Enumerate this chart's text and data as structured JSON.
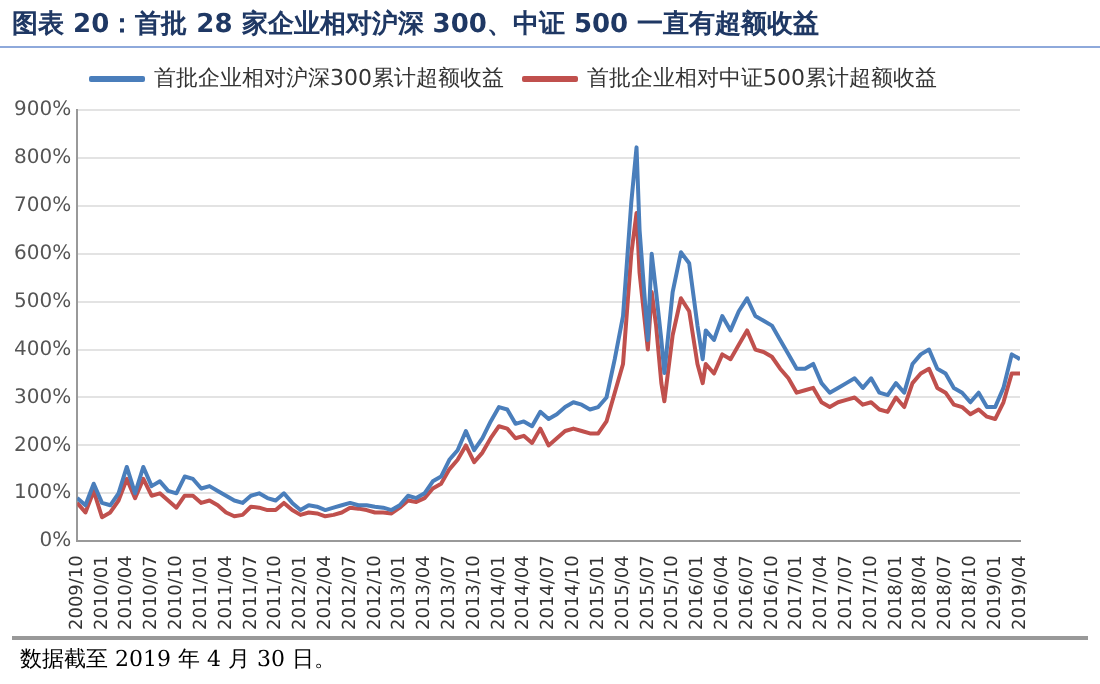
{
  "chart_data": {
    "type": "line",
    "title": "图表 20：首批 28 家企业相对沪深 300、中证 500 一直有超额收益",
    "annotations": [
      "数据截至 2019 年 4 月 30 日。"
    ],
    "x": [
      "2009-10",
      "2009-11",
      "2009-12",
      "2010-01",
      "2010-02",
      "2010-03",
      "2010-04",
      "2010-05",
      "2010-06",
      "2010-07",
      "2010-08",
      "2010-09",
      "2010-10",
      "2010-11",
      "2010-12",
      "2011-01",
      "2011-02",
      "2011-03",
      "2011-04",
      "2011-05",
      "2011-06",
      "2011-07",
      "2011-08",
      "2011-09",
      "2011-10",
      "2011-11",
      "2011-12",
      "2012-01",
      "2012-02",
      "2012-03",
      "2012-04",
      "2012-05",
      "2012-06",
      "2012-07",
      "2012-08",
      "2012-09",
      "2012-10",
      "2012-11",
      "2012-12",
      "2013-01",
      "2013-02",
      "2013-03",
      "2013-04",
      "2013-05",
      "2013-06",
      "2013-07",
      "2013-08",
      "2013-09",
      "2013-10",
      "2013-11",
      "2013-12",
      "2014-01",
      "2014-02",
      "2014-03",
      "2014-04",
      "2014-05",
      "2014-06",
      "2014-07",
      "2014-08",
      "2014-09",
      "2014-10",
      "2014-11",
      "2014-12",
      "2015-01",
      "2015-02",
      "2015-03",
      "2015-04",
      "2015-05",
      "2015-05-20",
      "2015-06",
      "2015-07",
      "2015-07-15",
      "2015-08",
      "2015-08-20",
      "2015-09",
      "2015-10",
      "2015-11",
      "2015-12",
      "2016-01",
      "2016-01-20",
      "2016-02",
      "2016-03",
      "2016-04",
      "2016-05",
      "2016-06",
      "2016-07",
      "2016-08",
      "2016-09",
      "2016-10",
      "2016-11",
      "2016-12",
      "2017-01",
      "2017-02",
      "2017-03",
      "2017-04",
      "2017-05",
      "2017-06",
      "2017-07",
      "2017-08",
      "2017-09",
      "2017-10",
      "2017-11",
      "2017-12",
      "2018-01",
      "2018-02",
      "2018-03",
      "2018-04",
      "2018-05",
      "2018-06",
      "2018-07",
      "2018-08",
      "2018-09",
      "2018-10",
      "2018-11",
      "2018-12",
      "2019-01",
      "2019-02",
      "2019-03",
      "2019-04"
    ],
    "series": [
      {
        "name": "首批企业相对沪深300累计超额收益",
        "color": "#4a7ebb",
        "values": [
          90,
          75,
          120,
          80,
          75,
          100,
          155,
          100,
          155,
          115,
          125,
          105,
          100,
          135,
          130,
          110,
          115,
          105,
          95,
          85,
          80,
          95,
          100,
          90,
          85,
          100,
          80,
          65,
          75,
          72,
          65,
          70,
          75,
          80,
          75,
          75,
          72,
          70,
          65,
          75,
          95,
          90,
          100,
          125,
          135,
          170,
          190,
          230,
          190,
          215,
          250,
          280,
          275,
          245,
          250,
          240,
          270,
          255,
          265,
          280,
          290,
          285,
          275,
          280,
          300,
          380,
          470,
          707,
          822,
          650,
          420,
          600,
          520,
          420,
          351,
          520,
          603,
          580,
          450,
          380,
          440,
          420,
          470,
          440,
          480,
          507,
          470,
          460,
          450,
          420,
          390,
          360,
          360,
          370,
          330,
          310,
          320,
          330,
          340,
          320,
          340,
          310,
          305,
          330,
          310,
          370,
          390,
          400,
          360,
          350,
          320,
          310,
          290,
          310,
          280,
          280,
          320,
          390,
          380
        ]
      },
      {
        "name": "首批企业相对中证500累计超额收益",
        "color": "#c0504d",
        "values": [
          80,
          60,
          105,
          50,
          60,
          85,
          130,
          90,
          130,
          95,
          100,
          85,
          70,
          95,
          95,
          80,
          85,
          75,
          60,
          52,
          55,
          72,
          70,
          65,
          65,
          80,
          65,
          55,
          60,
          58,
          52,
          55,
          60,
          70,
          68,
          65,
          60,
          60,
          58,
          70,
          85,
          82,
          90,
          110,
          120,
          150,
          170,
          200,
          165,
          185,
          215,
          240,
          235,
          215,
          220,
          205,
          235,
          200,
          215,
          230,
          235,
          230,
          225,
          225,
          250,
          310,
          370,
          600,
          685,
          560,
          400,
          520,
          450,
          330,
          292,
          430,
          507,
          480,
          370,
          330,
          370,
          350,
          390,
          380,
          410,
          440,
          400,
          395,
          385,
          360,
          340,
          310,
          315,
          320,
          290,
          280,
          290,
          295,
          300,
          285,
          290,
          275,
          270,
          300,
          280,
          330,
          350,
          360,
          320,
          310,
          285,
          280,
          265,
          275,
          260,
          255,
          290,
          350,
          350
        ]
      }
    ],
    "xlim": [
      "2009-10",
      "2019-04"
    ],
    "xticks": [
      {
        "value": "2009-10",
        "label": "2009/10"
      },
      {
        "value": "2010-01",
        "label": "2010/01"
      },
      {
        "value": "2010-04",
        "label": "2010/04"
      },
      {
        "value": "2010-07",
        "label": "2010/07"
      },
      {
        "value": "2010-10",
        "label": "2010/10"
      },
      {
        "value": "2011-01",
        "label": "2011/01"
      },
      {
        "value": "2011-04",
        "label": "2011/04"
      },
      {
        "value": "2011-07",
        "label": "2011/07"
      },
      {
        "value": "2011-10",
        "label": "2011/10"
      },
      {
        "value": "2012-01",
        "label": "2012/01"
      },
      {
        "value": "2012-04",
        "label": "2012/04"
      },
      {
        "value": "2012-07",
        "label": "2012/07"
      },
      {
        "value": "2012-10",
        "label": "2012/10"
      },
      {
        "value": "2013-01",
        "label": "2013/01"
      },
      {
        "value": "2013-04",
        "label": "2013/04"
      },
      {
        "value": "2013-07",
        "label": "2013/07"
      },
      {
        "value": "2013-10",
        "label": "2013/10"
      },
      {
        "value": "2014-01",
        "label": "2014/01"
      },
      {
        "value": "2014-04",
        "label": "2014/04"
      },
      {
        "value": "2014-07",
        "label": "2014/07"
      },
      {
        "value": "2014-10",
        "label": "2014/10"
      },
      {
        "value": "2015-01",
        "label": "2015/01"
      },
      {
        "value": "2015-04",
        "label": "2015/04"
      },
      {
        "value": "2015-07",
        "label": "2015/07"
      },
      {
        "value": "2015-10",
        "label": "2015/10"
      },
      {
        "value": "2016-01",
        "label": "2016/01"
      },
      {
        "value": "2016-04",
        "label": "2016/04"
      },
      {
        "value": "2016-07",
        "label": "2016/07"
      },
      {
        "value": "2016-10",
        "label": "2016/10"
      },
      {
        "value": "2017-01",
        "label": "2017/01"
      },
      {
        "value": "2017-04",
        "label": "2017/04"
      },
      {
        "value": "2017-07",
        "label": "2017/07"
      },
      {
        "value": "2017-10",
        "label": "2017/10"
      },
      {
        "value": "2018-01",
        "label": "2018/01"
      },
      {
        "value": "2018-04",
        "label": "2018/04"
      },
      {
        "value": "2018-07",
        "label": "2018/07"
      },
      {
        "value": "2018-10",
        "label": "2018/10"
      },
      {
        "value": "2019-01",
        "label": "2019/01"
      },
      {
        "value": "2019-04",
        "label": "2019/04"
      }
    ],
    "ylim": [
      0,
      900
    ],
    "yticks": [
      {
        "value": 0,
        "label": "0%"
      },
      {
        "value": 100,
        "label": "100%"
      },
      {
        "value": 200,
        "label": "200%"
      },
      {
        "value": 300,
        "label": "300%"
      },
      {
        "value": 400,
        "label": "400%"
      },
      {
        "value": 500,
        "label": "500%"
      },
      {
        "value": 600,
        "label": "600%"
      },
      {
        "value": 700,
        "label": "700%"
      },
      {
        "value": 800,
        "label": "800%"
      },
      {
        "value": 900,
        "label": "900%"
      }
    ],
    "grid": "y",
    "legend": "top",
    "marker": "none",
    "line_style": "solid"
  }
}
